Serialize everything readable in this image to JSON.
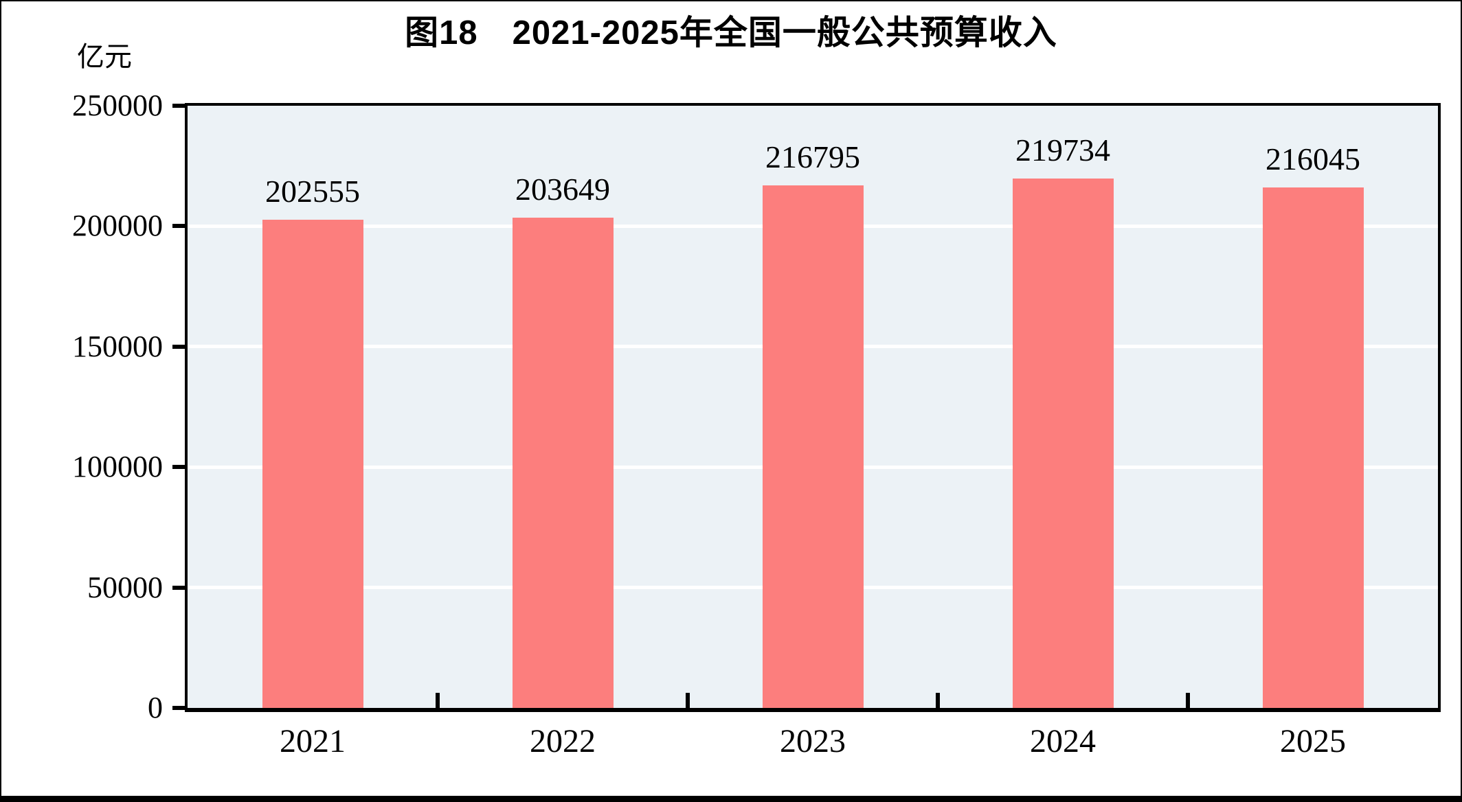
{
  "chart_data": {
    "type": "bar",
    "title": "图18　2021-2025年全国一般公共预算收入",
    "unit_label": "亿元",
    "categories": [
      "2021",
      "2022",
      "2023",
      "2024",
      "2025"
    ],
    "values": [
      202555,
      203649,
      216795,
      219734,
      216045
    ],
    "data_labels": [
      "202555",
      "203649",
      "216795",
      "219734",
      "216045"
    ],
    "xlabel": "",
    "ylabel": "亿元",
    "ylim": [
      0,
      250000
    ],
    "yticks": [
      0,
      50000,
      100000,
      150000,
      200000,
      250000
    ],
    "grid": "horizontal",
    "legend_position": "none",
    "bar_color": "#FC7E7D",
    "plot_background": "#ECF2F6",
    "gridline_color": "#FFFFFF",
    "frame_color": "#000000",
    "text_color": "#000000"
  }
}
